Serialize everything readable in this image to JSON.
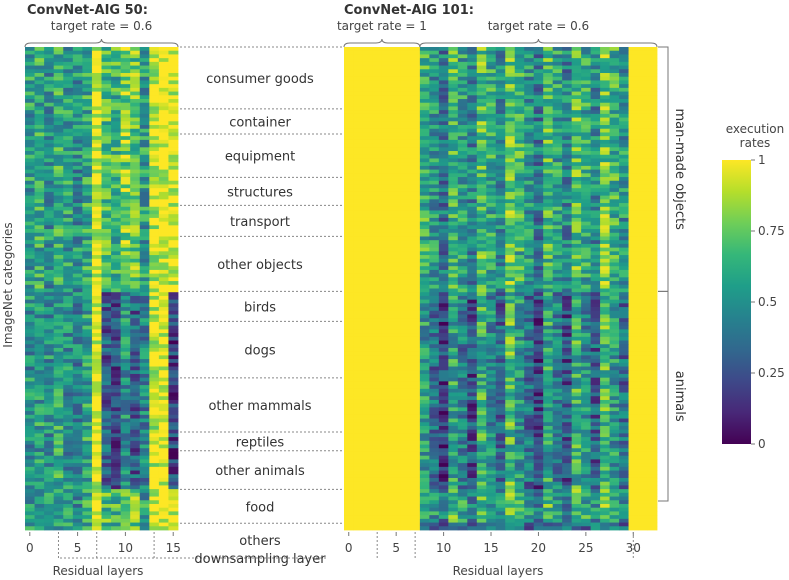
{
  "chart_data": [
    {
      "type": "heatmap",
      "title": "ConvNet-AIG 50:",
      "xlabel": "Residual layers",
      "x_ticks": [
        0,
        5,
        10,
        15
      ],
      "n_layers": 16,
      "target_groups": [
        {
          "label": "target rate = 0.6",
          "from": 0,
          "to": 15
        }
      ],
      "downsampling_layers": [
        3,
        7,
        13
      ],
      "seed": 7
    },
    {
      "type": "heatmap",
      "title": "ConvNet-AIG 101:",
      "xlabel": "Residual layers",
      "x_ticks": [
        0,
        5,
        10,
        15,
        20,
        25,
        30
      ],
      "n_layers": 33,
      "target_groups": [
        {
          "label": "target rate = 1",
          "from": 0,
          "to": 7
        },
        {
          "label": "target rate = 0.6",
          "from": 8,
          "to": 32
        }
      ],
      "downsampling_layers": [
        3,
        7,
        30
      ],
      "seed": 13
    }
  ],
  "ylabel": "ImageNet categories",
  "categories": [
    {
      "label": "consumer goods",
      "top": 0,
      "bottom": 0.128
    },
    {
      "label": "container",
      "top": 0.128,
      "bottom": 0.18
    },
    {
      "label": "equipment",
      "top": 0.18,
      "bottom": 0.27
    },
    {
      "label": "structures",
      "top": 0.27,
      "bottom": 0.328
    },
    {
      "label": "transport",
      "top": 0.328,
      "bottom": 0.392
    },
    {
      "label": "other objects",
      "top": 0.392,
      "bottom": 0.506
    },
    {
      "label": "birds",
      "top": 0.506,
      "bottom": 0.568
    },
    {
      "label": "dogs",
      "top": 0.568,
      "bottom": 0.685
    },
    {
      "label": "other mammals",
      "top": 0.685,
      "bottom": 0.797
    },
    {
      "label": "reptiles",
      "top": 0.797,
      "bottom": 0.836
    },
    {
      "label": "other animals",
      "top": 0.836,
      "bottom": 0.916
    },
    {
      "label": "food",
      "top": 0.916,
      "bottom": 0.986
    },
    {
      "label": "others",
      "top": 0.986,
      "bottom": 1.06
    }
  ],
  "super_groups": [
    {
      "label": "man-made objects",
      "top": 0,
      "bottom": 0.506
    },
    {
      "label": "animals",
      "top": 0.506,
      "bottom": 0.94
    }
  ],
  "colorbar": {
    "title_line1": "execution",
    "title_line2": "rates",
    "ticks": [
      {
        "value": 1,
        "label": "1"
      },
      {
        "value": 0.75,
        "label": "0.75"
      },
      {
        "value": 0.5,
        "label": "0.5"
      },
      {
        "value": 0.25,
        "label": "0.25"
      },
      {
        "value": 0,
        "label": "0"
      }
    ]
  },
  "downsampling_label": "downsampling layer",
  "colors": {
    "viridis": [
      "#440154",
      "#482878",
      "#3e4989",
      "#31688e",
      "#26828e",
      "#1f9e89",
      "#35b779",
      "#6ece58",
      "#b5de2b",
      "#fde725"
    ]
  }
}
